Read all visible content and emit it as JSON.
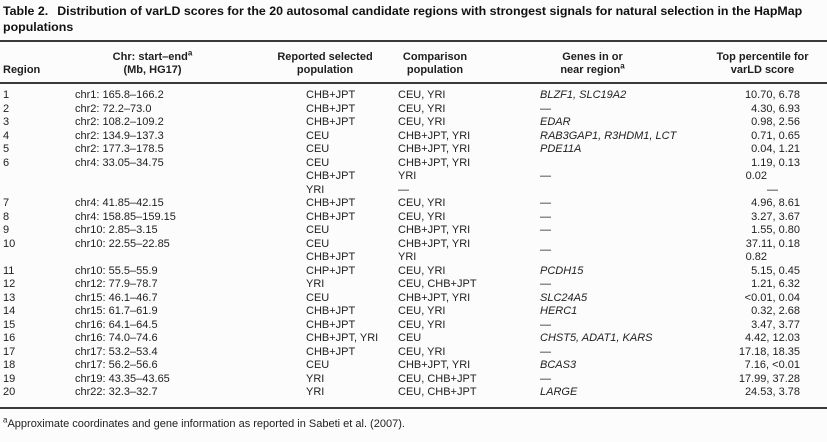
{
  "title": {
    "label": "Table 2.",
    "text": "Distribution of varLD scores for the 20 autosomal candidate regions with strongest signals for natural selection in the HapMap populations"
  },
  "header": {
    "region": "Region",
    "chr_line1": "Chr: start–end",
    "chr_sup": "a",
    "chr_line2": "(Mb, HG17)",
    "selected_line1": "Reported selected",
    "selected_line2": "population",
    "comparison_line1": "Comparison",
    "comparison_line2": "population",
    "genes_line1": "Genes in or",
    "genes_line2": "near region",
    "genes_sup": "a",
    "percentile_line1": "Top percentile for",
    "percentile_line2": "varLD score"
  },
  "rows": [
    {
      "region": "1",
      "range": "chr1: 165.8–166.2",
      "genes": "BLZF1, SLC19A2",
      "lines": [
        {
          "selected": "CHB+JPT",
          "comparison": "CEU, YRI",
          "percentile": "10.70, 6.78"
        }
      ]
    },
    {
      "region": "2",
      "range": "chr2: 72.2–73.0",
      "genes": "—",
      "lines": [
        {
          "selected": "CHB+JPT",
          "comparison": "CEU, YRI",
          "percentile": "4.30, 6.93"
        }
      ]
    },
    {
      "region": "3",
      "range": "chr2: 108.2–109.2",
      "genes": "EDAR",
      "lines": [
        {
          "selected": "CHB+JPT",
          "comparison": "CEU, YRI",
          "percentile": "0.98, 2.56"
        }
      ]
    },
    {
      "region": "4",
      "range": "chr2: 134.9–137.3",
      "genes": "RAB3GAP1, R3HDM1, LCT",
      "lines": [
        {
          "selected": "CEU",
          "comparison": "CHB+JPT, YRI",
          "percentile": "0.71, 0.65"
        }
      ]
    },
    {
      "region": "5",
      "range": "chr2: 177.3–178.5",
      "genes": "PDE11A",
      "lines": [
        {
          "selected": "CEU",
          "comparison": "CHB+JPT, YRI",
          "percentile": "0.04, 1.21"
        }
      ]
    },
    {
      "region": "6",
      "range": "chr4: 33.05–34.75",
      "genes": "—",
      "lines": [
        {
          "selected": "CEU",
          "comparison": "CHB+JPT, YRI",
          "percentile": "1.19, 0.13"
        },
        {
          "selected": "CHB+JPT",
          "comparison": "YRI",
          "percentile": "0.02"
        },
        {
          "selected": "YRI",
          "comparison": "—",
          "percentile": "—"
        }
      ]
    },
    {
      "region": "7",
      "range": "chr4: 41.85–42.15",
      "genes": "—",
      "lines": [
        {
          "selected": "CHB+JPT",
          "comparison": "CEU, YRI",
          "percentile": "4.96, 8.61"
        }
      ]
    },
    {
      "region": "8",
      "range": "chr4: 158.85–159.15",
      "genes": "—",
      "lines": [
        {
          "selected": "CHB+JPT",
          "comparison": "CEU, YRI",
          "percentile": "3.27, 3.67"
        }
      ]
    },
    {
      "region": "9",
      "range": "chr10: 2.85–3.15",
      "genes": "—",
      "lines": [
        {
          "selected": "CEU",
          "comparison": "CHB+JPT, YRI",
          "percentile": "1.55, 0.80"
        }
      ]
    },
    {
      "region": "10",
      "range": "chr10: 22.55–22.85",
      "genes": "—",
      "lines": [
        {
          "selected": "CEU",
          "comparison": "CHB+JPT, YRI",
          "percentile": "37.11, 0.18"
        },
        {
          "selected": "CHB+JPT",
          "comparison": "YRI",
          "percentile": "0.82"
        }
      ]
    },
    {
      "region": "11",
      "range": "chr10: 55.5–55.9",
      "genes": "PCDH15",
      "lines": [
        {
          "selected": "CHP+JPT",
          "comparison": "CEU, YRI",
          "percentile": "5.15, 0.45"
        }
      ]
    },
    {
      "region": "12",
      "range": "chr12: 77.9–78.7",
      "genes": "—",
      "lines": [
        {
          "selected": "YRI",
          "comparison": "CEU, CHB+JPT",
          "percentile": "1.21, 6.32"
        }
      ]
    },
    {
      "region": "13",
      "range": "chr15: 46.1–46.7",
      "genes": "SLC24A5",
      "lines": [
        {
          "selected": "CEU",
          "comparison": "CHB+JPT, YRI",
          "percentile": "<0.01, 0.04"
        }
      ]
    },
    {
      "region": "14",
      "range": "chr15: 61.7–61.9",
      "genes": "HERC1",
      "lines": [
        {
          "selected": "CHB+JPT",
          "comparison": "CEU, YRI",
          "percentile": "0.32, 2.68"
        }
      ]
    },
    {
      "region": "15",
      "range": "chr16: 64.1–64.5",
      "genes": "—",
      "lines": [
        {
          "selected": "CHB+JPT",
          "comparison": "CEU, YRI",
          "percentile": "3.47, 3.77"
        }
      ]
    },
    {
      "region": "16",
      "range": "chr16: 74.0–74.6",
      "genes": "CHST5, ADAT1, KARS",
      "lines": [
        {
          "selected": "CHB+JPT, YRI",
          "comparison": "CEU",
          "percentile": "4.42, 12.03"
        }
      ]
    },
    {
      "region": "17",
      "range": "chr17: 53.2–53.4",
      "genes": "—",
      "lines": [
        {
          "selected": "CHB+JPT",
          "comparison": "CEU, YRI",
          "percentile": "17.18, 18.35"
        }
      ]
    },
    {
      "region": "18",
      "range": "chr17: 56.2–56.6",
      "genes": "BCAS3",
      "lines": [
        {
          "selected": "CEU",
          "comparison": "CHB+JPT, YRI",
          "percentile": "7.16, <0.01"
        }
      ]
    },
    {
      "region": "19",
      "range": "chr19: 43.35–43.65",
      "genes": "—",
      "lines": [
        {
          "selected": "YRI",
          "comparison": "CEU, CHB+JPT",
          "percentile": "17.99, 37.28"
        }
      ]
    },
    {
      "region": "20",
      "range": "chr22: 32.3–32.7",
      "genes": "LARGE",
      "lines": [
        {
          "selected": "YRI",
          "comparison": "CEU, CHB+JPT",
          "percentile": "24.53, 3.78"
        }
      ]
    }
  ],
  "footnote": {
    "sup": "a",
    "text": "Approximate coordinates and gene information as reported in Sabeti et al. (2007)."
  }
}
